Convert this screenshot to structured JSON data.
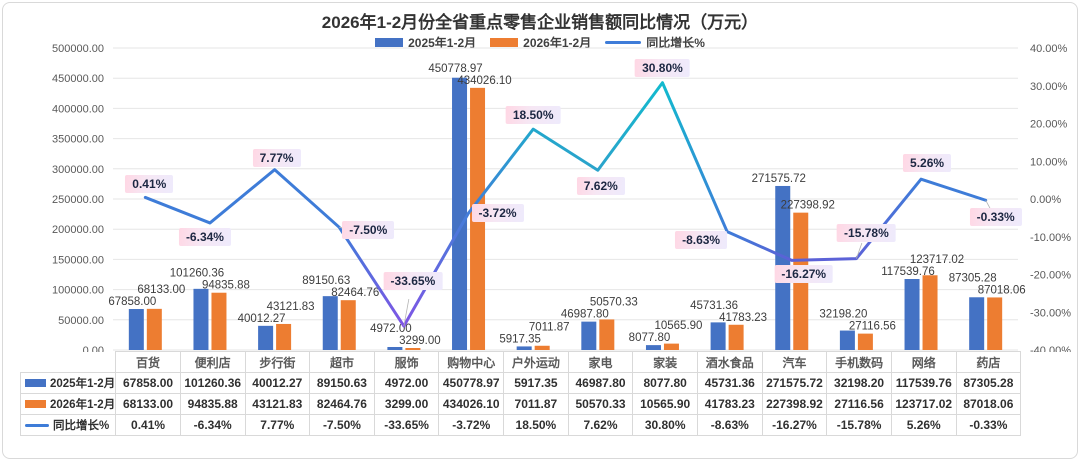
{
  "title": "2026年1-2月份全省重点零售企业销售额同比情况（万元）",
  "legend": {
    "items": [
      {
        "label": "2025年1-2月",
        "type": "bar",
        "color": "#4472C4"
      },
      {
        "label": "2026年1-2月",
        "type": "bar",
        "color": "#ED7D31"
      },
      {
        "label": "同比增长%",
        "type": "line",
        "color": "#3E7CD8"
      }
    ]
  },
  "chart_data": {
    "type": "bar",
    "subtype": "combo-bar-line",
    "title": "2026年1-2月份全省重点零售企业销售额同比情况（万元）",
    "categories": [
      "百货",
      "便利店",
      "步行街",
      "超市",
      "服饰",
      "购物中心",
      "户外运动",
      "家电",
      "家装",
      "酒水食品",
      "汽车",
      "手机数码",
      "网络",
      "药店"
    ],
    "series": [
      {
        "name": "2025年1-2月",
        "type": "bar",
        "color": "#4472C4",
        "values": [
          "67858.00",
          "101260.36",
          "40012.27",
          "89150.63",
          "4972.00",
          "450778.97",
          "5917.35",
          "46987.80",
          "8077.80",
          "45731.36",
          "271575.72",
          "32198.20",
          "117539.76",
          "87305.28"
        ]
      },
      {
        "name": "2026年1-2月",
        "type": "bar",
        "color": "#ED7D31",
        "values": [
          "68133.00",
          "94835.88",
          "43121.83",
          "82464.76",
          "3299.00",
          "434026.10",
          "7011.87",
          "50570.33",
          "10565.90",
          "41783.23",
          "227398.92",
          "27116.56",
          "123717.02",
          "87018.06"
        ]
      },
      {
        "name": "同比增长%",
        "type": "line",
        "values": [
          "0.41%",
          "-6.34%",
          "7.77%",
          "-7.50%",
          "-33.65%",
          "-3.72%",
          "18.50%",
          "7.62%",
          "30.80%",
          "-8.63%",
          "-16.27%",
          "-15.78%",
          "5.26%",
          "-0.33%"
        ]
      }
    ],
    "left_axis": {
      "min": 0,
      "max": 500000,
      "step": 50000,
      "tick_labels": [
        "0.00",
        "50000.00",
        "100000.00",
        "150000.00",
        "200000.00",
        "250000.00",
        "300000.00",
        "350000.00",
        "400000.00",
        "450000.00",
        "500000.00"
      ]
    },
    "right_axis": {
      "min": -40,
      "max": 40,
      "step": 10,
      "tick_labels": [
        "-40.00%",
        "-30.00%",
        "-20.00%",
        "-10.00%",
        "0.00%",
        "10.00%",
        "20.00%",
        "30.00%",
        "40.00%"
      ]
    },
    "grid": true,
    "legend_position": "top"
  },
  "colors": {
    "bar_2025": "#4472C4",
    "bar_2026": "#ED7D31",
    "line_blue": "#3E7CD8",
    "line_purple": "#7F55E5",
    "line_teal": "#12BACE",
    "grid": "#e6e6e6",
    "tick_text": "#595959",
    "value_text": "#3d3d3d",
    "label_bg_from": "#ffd7e4",
    "label_bg_to": "#eeeafc"
  }
}
